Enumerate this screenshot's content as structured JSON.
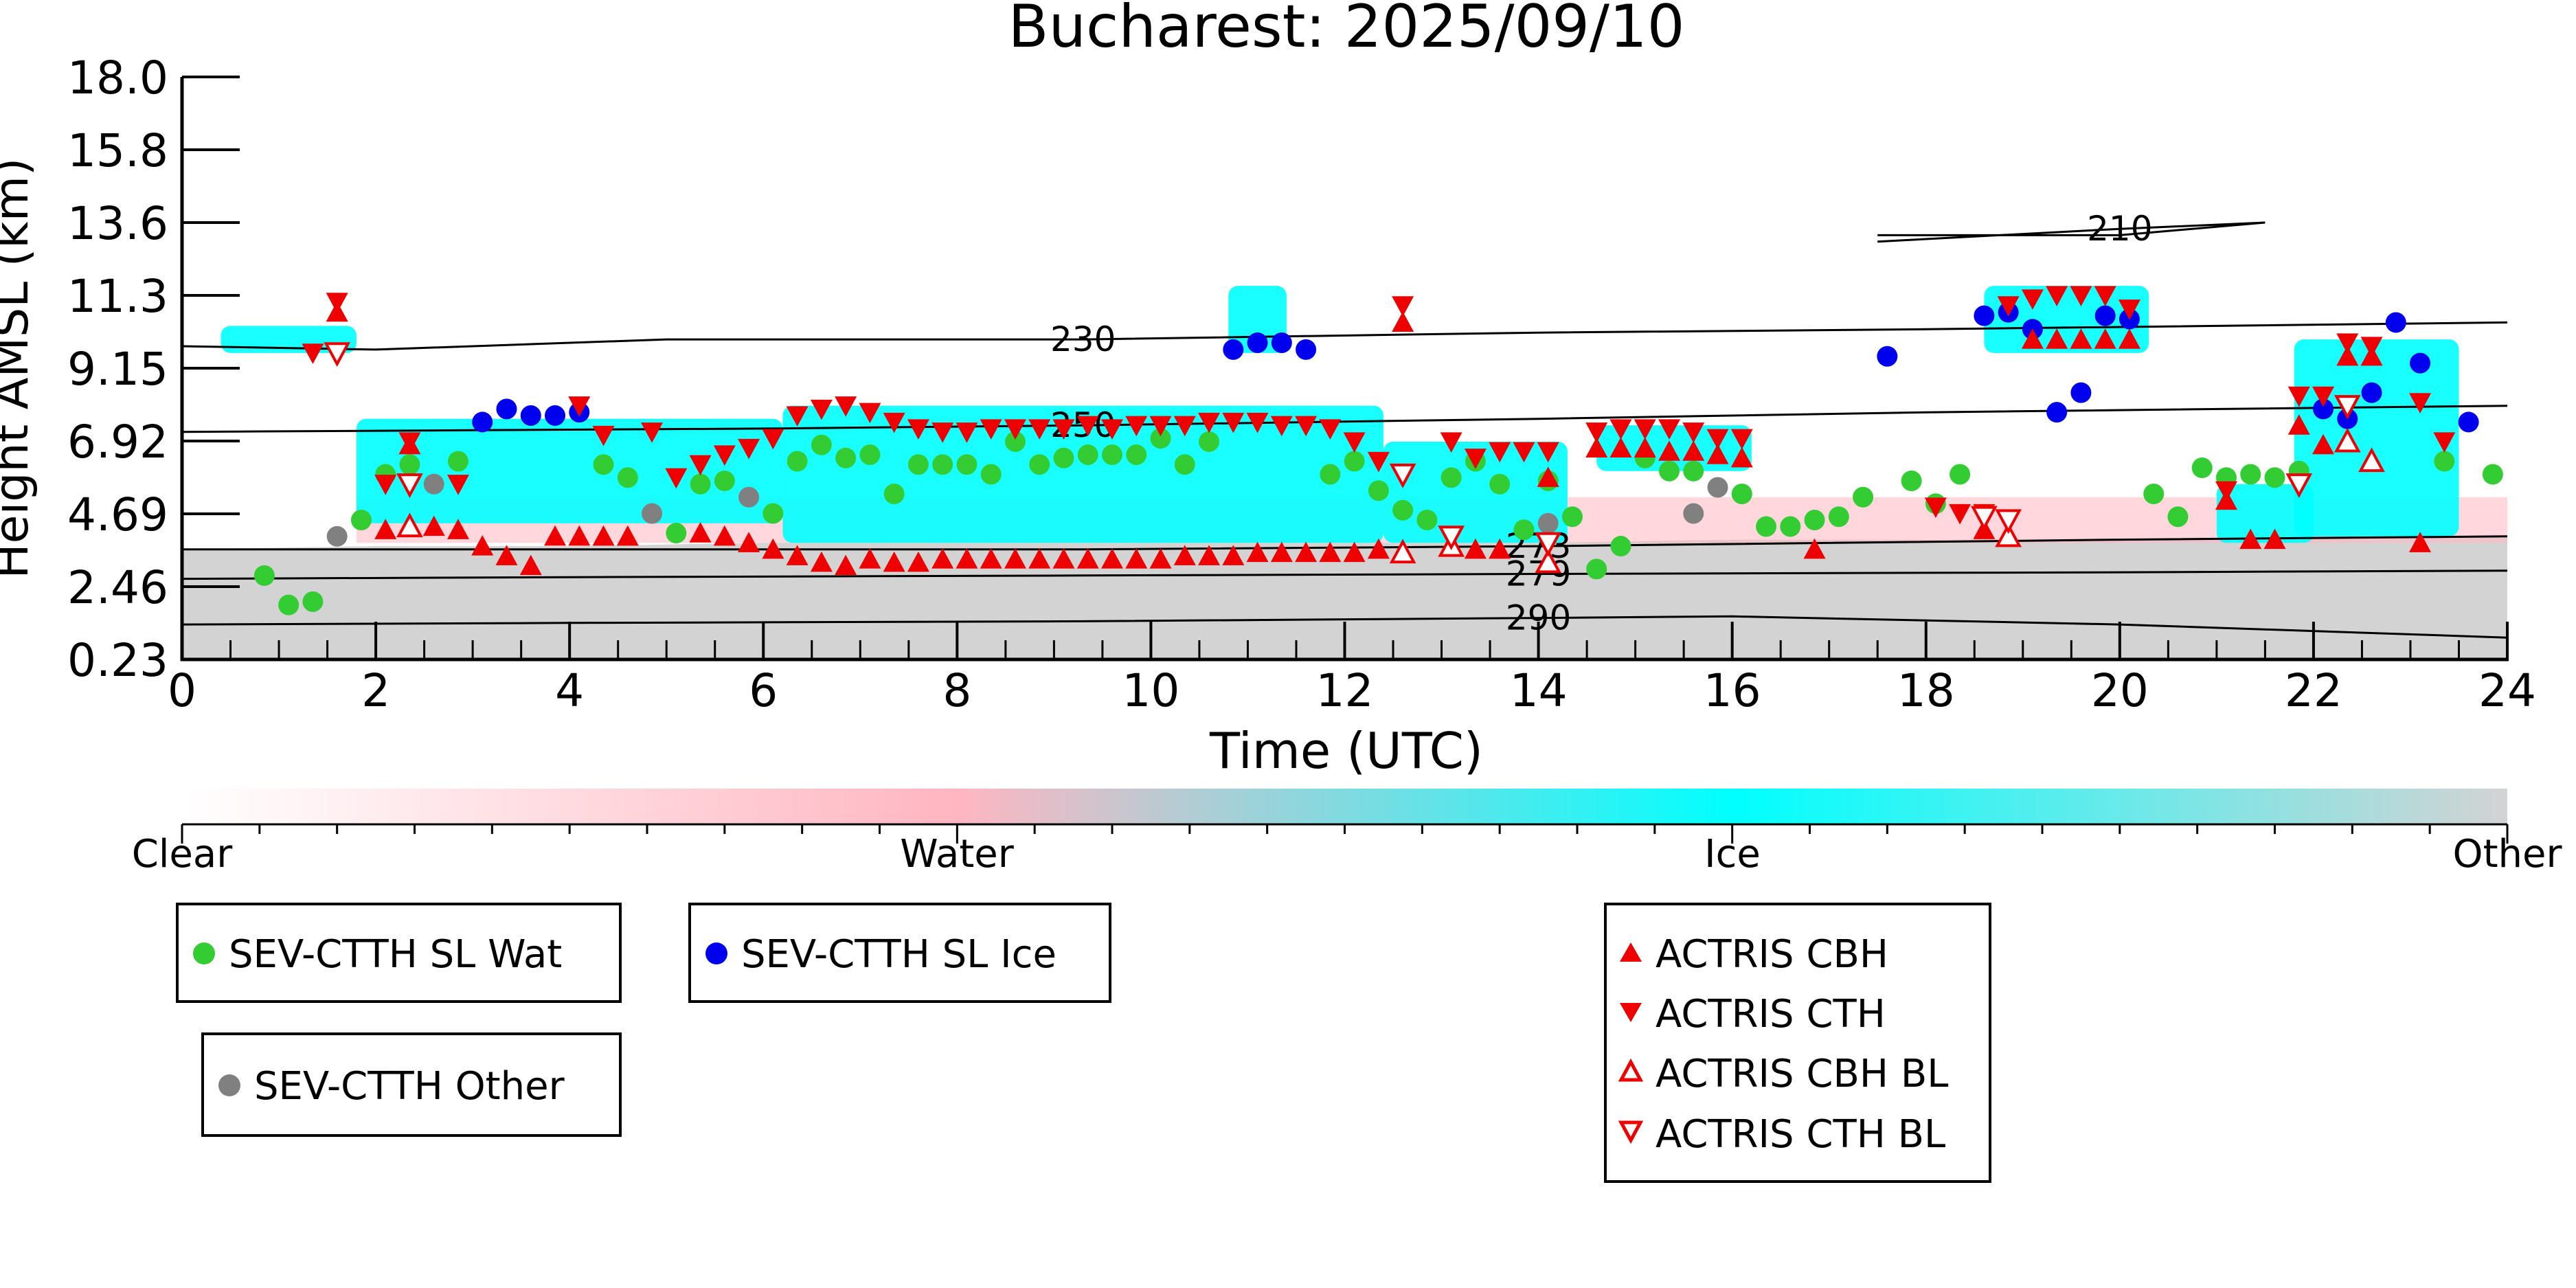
{
  "chart_data": {
    "type": "scatter",
    "title": "Bucharest: 2025/09/10",
    "xlabel": "Time (UTC)",
    "ylabel": "Height AMSL (km)",
    "xlim": [
      0,
      24
    ],
    "ylim": [
      0.23,
      18.0
    ],
    "x_ticks": [
      "0",
      "2",
      "4",
      "6",
      "8",
      "10",
      "12",
      "14",
      "16",
      "18",
      "20",
      "22",
      "24"
    ],
    "y_ticks": [
      "0.23",
      "2.46",
      "4.69",
      "6.92",
      "9.15",
      "11.3",
      "13.6",
      "15.8",
      "18.0"
    ],
    "y_tick_values": [
      0.23,
      2.46,
      4.69,
      6.92,
      9.15,
      11.3,
      13.6,
      15.8,
      18.0
    ],
    "background_classification": {
      "categories": [
        "Clear",
        "Water",
        "Ice",
        "Other"
      ],
      "colors": [
        "#ffffff",
        "#ffb6c1",
        "#00ffff",
        "#d3d3d3"
      ],
      "ice_regions": [
        {
          "x": [
            0.4,
            1.8
          ],
          "y": [
            9.6,
            10.4
          ]
        },
        {
          "x": [
            1.8,
            6.2
          ],
          "y": [
            4.4,
            7.6
          ]
        },
        {
          "x": [
            6.2,
            12.4
          ],
          "y": [
            3.8,
            8.0
          ]
        },
        {
          "x": [
            12.4,
            14.3
          ],
          "y": [
            3.8,
            6.9
          ]
        },
        {
          "x": [
            14.6,
            16.2
          ],
          "y": [
            6.0,
            7.4
          ]
        },
        {
          "x": [
            18.6,
            20.3
          ],
          "y": [
            9.6,
            11.6
          ]
        },
        {
          "x": [
            21.0,
            22.0
          ],
          "y": [
            3.8,
            5.6
          ]
        },
        {
          "x": [
            21.8,
            23.5
          ],
          "y": [
            4.0,
            10.0
          ]
        },
        {
          "x": [
            10.8,
            11.4
          ],
          "y": [
            9.6,
            11.6
          ]
        }
      ],
      "water_band": {
        "x": [
          1.8,
          24.0
        ],
        "y": [
          3.8,
          5.2
        ]
      },
      "other_surface": [
        [
          0.0,
          3.6
        ],
        [
          2.0,
          3.7
        ],
        [
          4.0,
          3.7
        ],
        [
          6.0,
          3.8
        ],
        [
          8.0,
          3.8
        ],
        [
          10.0,
          3.8
        ],
        [
          12.0,
          3.8
        ],
        [
          14.0,
          3.8
        ],
        [
          16.0,
          3.9
        ],
        [
          18.0,
          3.9
        ],
        [
          20.0,
          3.9
        ],
        [
          22.0,
          4.0
        ],
        [
          24.0,
          4.0
        ]
      ]
    },
    "isotherms": [
      {
        "label": "210",
        "points": [
          [
            17.5,
            13.2
          ],
          [
            20.0,
            13.2
          ],
          [
            21.5,
            13.6
          ],
          [
            20.0,
            13.4
          ],
          [
            17.5,
            13.0
          ]
        ]
      },
      {
        "label": "230",
        "points": [
          [
            0.0,
            9.8
          ],
          [
            2.0,
            9.7
          ],
          [
            5.0,
            10.0
          ],
          [
            9.3,
            10.0
          ],
          [
            14.0,
            10.2
          ],
          [
            18.0,
            10.3
          ],
          [
            24.0,
            10.5
          ]
        ]
      },
      {
        "label": "250",
        "points": [
          [
            0.0,
            7.2
          ],
          [
            3.0,
            7.25
          ],
          [
            6.0,
            7.3
          ],
          [
            9.3,
            7.4
          ],
          [
            14.0,
            7.6
          ],
          [
            18.0,
            7.8
          ],
          [
            24.0,
            8.0
          ]
        ]
      },
      {
        "label": "273",
        "points": [
          [
            0.0,
            3.6
          ],
          [
            4.0,
            3.6
          ],
          [
            9.3,
            3.6
          ],
          [
            14.0,
            3.7
          ],
          [
            20.0,
            3.9
          ],
          [
            24.0,
            4.0
          ]
        ]
      },
      {
        "label": "279",
        "points": [
          [
            0.0,
            2.7
          ],
          [
            4.0,
            2.75
          ],
          [
            9.3,
            2.8
          ],
          [
            14.0,
            2.85
          ],
          [
            20.0,
            2.9
          ],
          [
            24.0,
            2.95
          ]
        ]
      },
      {
        "label": "290",
        "points": [
          [
            0.0,
            1.3
          ],
          [
            4.0,
            1.35
          ],
          [
            9.3,
            1.4
          ],
          [
            14.0,
            1.5
          ],
          [
            16.0,
            1.55
          ],
          [
            20.0,
            1.3
          ],
          [
            24.0,
            0.9
          ]
        ]
      }
    ],
    "series": [
      {
        "name": "SEV-CTTH SL Wat",
        "marker": "circle",
        "color": "#33cc33",
        "x": [
          0.85,
          1.1,
          1.35,
          1.85,
          2.1,
          2.35,
          2.85,
          4.35,
          4.6,
          5.1,
          5.35,
          5.6,
          6.1,
          6.35,
          6.6,
          6.85,
          7.1,
          7.35,
          7.6,
          7.85,
          8.1,
          8.35,
          8.6,
          8.85,
          9.1,
          9.35,
          9.6,
          9.85,
          10.1,
          10.35,
          10.6,
          11.85,
          12.1,
          12.35,
          12.6,
          12.85,
          13.1,
          13.35,
          13.6,
          13.85,
          14.1,
          14.35,
          14.6,
          14.85,
          15.1,
          15.35,
          15.6,
          16.1,
          16.35,
          16.6,
          16.85,
          17.1,
          17.35,
          17.85,
          18.1,
          18.35,
          20.35,
          20.6,
          20.85,
          21.1,
          21.35,
          21.6,
          21.85,
          23.35,
          23.85
        ],
        "y": [
          2.8,
          1.9,
          2.0,
          4.5,
          5.9,
          6.2,
          6.3,
          6.2,
          5.8,
          4.1,
          5.6,
          5.7,
          4.7,
          6.3,
          6.8,
          6.4,
          6.5,
          5.3,
          6.2,
          6.2,
          6.2,
          5.9,
          6.9,
          6.2,
          6.4,
          6.5,
          6.5,
          6.5,
          7.0,
          6.2,
          6.9,
          5.9,
          6.3,
          5.4,
          4.8,
          4.5,
          5.8,
          6.3,
          5.6,
          4.2,
          5.7,
          4.6,
          3.0,
          3.7,
          6.4,
          6.0,
          6.0,
          5.3,
          4.3,
          4.3,
          4.5,
          4.6,
          5.2,
          5.7,
          5.0,
          5.9,
          5.3,
          4.6,
          6.1,
          5.8,
          5.9,
          5.8,
          6.0,
          6.3,
          5.9
        ]
      },
      {
        "name": "SEV-CTTH SL Ice",
        "marker": "circle",
        "color": "#0000ee",
        "x": [
          3.1,
          3.35,
          3.6,
          3.85,
          4.1,
          10.85,
          11.1,
          11.35,
          11.6,
          17.6,
          18.6,
          18.85,
          19.1,
          19.35,
          19.6,
          19.85,
          20.1,
          22.1,
          22.35,
          22.6,
          22.85,
          23.1,
          23.6
        ],
        "y": [
          7.5,
          7.9,
          7.7,
          7.7,
          7.8,
          9.7,
          9.9,
          9.9,
          9.7,
          9.5,
          10.7,
          10.8,
          10.3,
          7.8,
          8.4,
          10.7,
          10.6,
          7.9,
          7.6,
          8.4,
          10.5,
          9.3,
          7.5
        ]
      },
      {
        "name": "SEV-CTTH Other",
        "marker": "circle",
        "color": "#808080",
        "x": [
          1.6,
          2.6,
          4.85,
          5.85,
          14.1,
          15.6,
          15.85
        ],
        "y": [
          4.0,
          5.6,
          4.7,
          5.2,
          4.4,
          4.7,
          5.5
        ]
      },
      {
        "name": "ACTRIS CBH",
        "marker": "triangle-up",
        "color": "#ee0000",
        "filled": true,
        "x": [
          1.6,
          2.1,
          2.35,
          2.6,
          2.85,
          3.1,
          3.35,
          3.6,
          3.85,
          4.1,
          4.35,
          4.6,
          5.35,
          5.6,
          5.85,
          6.1,
          6.35,
          6.6,
          6.85,
          7.1,
          7.35,
          7.6,
          7.85,
          8.1,
          8.35,
          8.6,
          8.85,
          9.1,
          9.35,
          9.6,
          9.85,
          10.1,
          10.35,
          10.6,
          10.85,
          11.1,
          11.35,
          11.6,
          11.85,
          12.1,
          12.35,
          12.6,
          13.35,
          13.6,
          14.1,
          14.6,
          14.85,
          15.1,
          15.35,
          15.6,
          15.85,
          16.1,
          16.85,
          18.6,
          18.85,
          19.1,
          19.35,
          19.6,
          19.85,
          20.1,
          21.1,
          21.35,
          21.6,
          21.85,
          22.1,
          22.35,
          22.6,
          23.1
        ],
        "y": [
          10.8,
          4.2,
          6.8,
          4.3,
          4.2,
          3.7,
          3.4,
          3.1,
          4.0,
          4.0,
          4.0,
          4.0,
          4.1,
          4.0,
          3.8,
          3.6,
          3.4,
          3.2,
          3.1,
          3.3,
          3.2,
          3.2,
          3.3,
          3.3,
          3.3,
          3.3,
          3.3,
          3.3,
          3.3,
          3.3,
          3.3,
          3.3,
          3.4,
          3.4,
          3.4,
          3.5,
          3.5,
          3.5,
          3.5,
          3.5,
          3.6,
          10.5,
          3.6,
          3.6,
          5.8,
          6.7,
          6.7,
          6.7,
          6.6,
          6.6,
          6.5,
          6.4,
          3.6,
          4.2,
          4.0,
          10.0,
          10.0,
          10.0,
          10.0,
          10.0,
          5.1,
          3.9,
          3.9,
          7.4,
          6.8,
          9.5,
          9.5,
          3.8
        ]
      },
      {
        "name": "ACTRIS CTH",
        "marker": "triangle-down",
        "color": "#ee0000",
        "filled": true,
        "x": [
          1.35,
          1.6,
          2.1,
          2.35,
          2.85,
          4.1,
          4.35,
          4.85,
          5.1,
          5.35,
          5.6,
          5.85,
          6.1,
          6.35,
          6.6,
          6.85,
          7.1,
          7.35,
          7.6,
          7.85,
          8.1,
          8.35,
          8.6,
          8.85,
          9.1,
          9.35,
          9.6,
          9.85,
          10.1,
          10.35,
          10.6,
          10.85,
          11.1,
          11.35,
          11.6,
          11.85,
          12.1,
          12.35,
          12.6,
          13.1,
          13.35,
          13.6,
          13.85,
          14.1,
          14.6,
          14.85,
          15.1,
          15.35,
          15.6,
          15.85,
          16.1,
          18.1,
          18.35,
          18.6,
          18.85,
          19.1,
          19.35,
          19.6,
          19.85,
          20.1,
          21.1,
          21.85,
          22.1,
          22.35,
          22.6,
          23.1,
          23.35
        ],
        "y": [
          9.6,
          11.1,
          5.6,
          6.9,
          5.6,
          8.0,
          7.1,
          7.2,
          5.8,
          6.2,
          6.5,
          6.7,
          7.0,
          7.7,
          7.9,
          8.0,
          7.8,
          7.5,
          7.3,
          7.2,
          7.2,
          7.3,
          7.3,
          7.3,
          7.3,
          7.4,
          7.3,
          7.4,
          7.4,
          7.4,
          7.5,
          7.5,
          7.5,
          7.4,
          7.4,
          7.3,
          6.9,
          6.3,
          11.0,
          6.9,
          6.4,
          6.6,
          6.6,
          6.6,
          7.2,
          7.3,
          7.3,
          7.3,
          7.2,
          7.0,
          7.0,
          4.9,
          4.7,
          4.7,
          11.0,
          11.2,
          11.3,
          11.3,
          11.3,
          10.9,
          5.4,
          8.3,
          8.3,
          9.9,
          9.8,
          8.1,
          6.9
        ]
      },
      {
        "name": "ACTRIS CBH BL",
        "marker": "triangle-up",
        "color": "#ee0000",
        "filled": false,
        "x": [
          2.35,
          12.6,
          13.1,
          14.1,
          18.85,
          22.35,
          22.6
        ],
        "y": [
          4.3,
          3.5,
          3.7,
          3.2,
          4.0,
          6.9,
          6.3
        ]
      },
      {
        "name": "ACTRIS CTH BL",
        "marker": "triangle-down",
        "color": "#ee0000",
        "filled": false,
        "x": [
          1.6,
          2.35,
          12.6,
          13.1,
          14.1,
          18.6,
          18.85,
          21.85,
          22.35
        ],
        "y": [
          9.6,
          5.6,
          5.9,
          4.0,
          3.8,
          4.6,
          4.5,
          5.6,
          8.0
        ]
      }
    ],
    "colorbar": {
      "labels": [
        "Clear",
        "Water",
        "Ice",
        "Other"
      ],
      "colors": [
        "#ffffff",
        "#ffb6c1",
        "#00ffff",
        "#d3d3d3"
      ]
    },
    "legend_groups": [
      {
        "position": "bottom-left",
        "entries": [
          "SEV-CTTH SL Wat"
        ]
      },
      {
        "position": "bottom-left",
        "entries": [
          "SEV-CTTH SL Ice"
        ]
      },
      {
        "position": "bottom-left",
        "entries": [
          "SEV-CTTH Other"
        ]
      },
      {
        "position": "bottom-right",
        "entries": [
          "ACTRIS CBH",
          "ACTRIS CTH",
          "ACTRIS CBH BL",
          "ACTRIS CTH BL"
        ]
      }
    ],
    "grid": false
  }
}
